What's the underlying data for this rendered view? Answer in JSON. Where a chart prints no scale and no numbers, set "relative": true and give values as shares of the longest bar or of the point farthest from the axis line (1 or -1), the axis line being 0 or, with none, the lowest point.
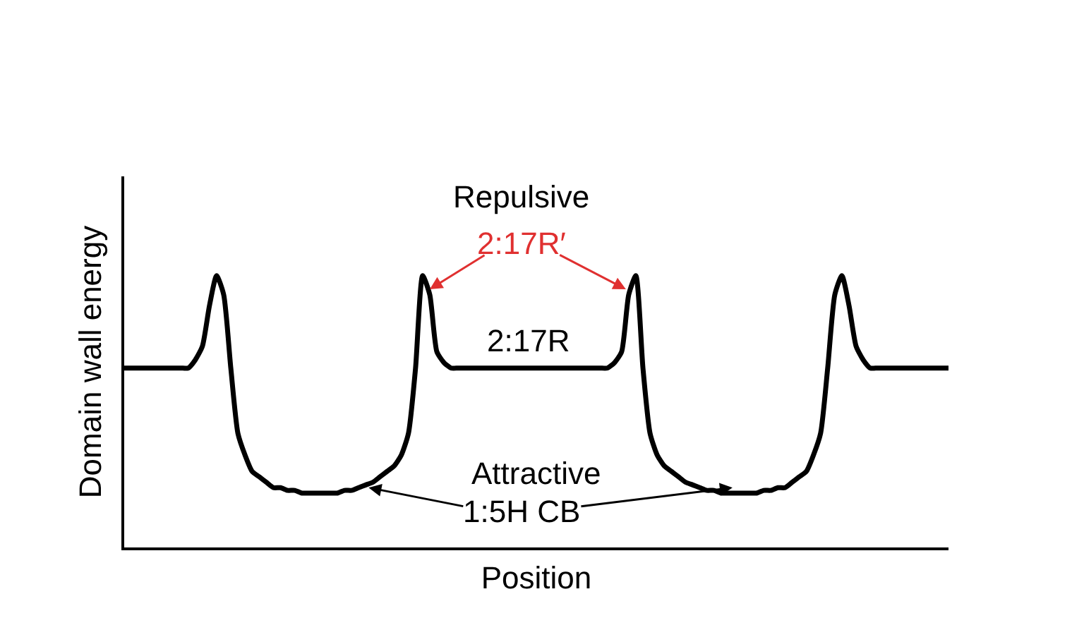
{
  "chart_data": {
    "type": "line",
    "relative": true,
    "xlabel": "Position",
    "ylabel": "Domain wall energy",
    "annotations": [
      "Repulsive",
      "2:17R′",
      "2:17R",
      "Attractive",
      "1:5H CB"
    ],
    "categories": [
      null,
      null,
      null,
      null,
      null,
      null,
      null,
      null,
      null,
      null,
      null,
      null,
      null,
      null,
      null,
      null,
      null,
      null,
      null,
      null,
      null,
      null,
      null,
      null,
      null,
      null,
      null,
      null,
      null,
      null,
      null,
      null,
      null,
      null,
      null,
      null,
      null,
      null,
      null,
      null,
      null,
      null,
      null,
      null,
      null,
      null,
      null,
      null,
      null,
      null,
      null,
      null,
      null,
      null,
      null,
      null,
      null,
      null,
      null,
      null,
      null,
      null,
      null,
      null,
      null,
      null,
      null,
      null,
      null,
      null,
      null,
      null,
      null,
      null,
      null,
      null,
      null,
      null,
      null,
      null,
      null,
      null,
      null,
      null,
      null,
      null,
      null,
      null,
      null,
      null,
      null,
      null,
      null,
      null,
      null,
      null,
      null,
      null,
      null,
      null,
      null,
      null,
      null,
      null,
      null,
      null,
      null,
      null,
      null,
      null,
      null,
      null,
      null,
      null,
      null,
      null,
      null
    ],
    "series": [
      {
        "color": "#000000",
        "values": [
          0.66,
          0.66,
          0.66,
          0.66,
          0.66,
          0.66,
          0.66,
          0.66,
          0.66,
          0.66,
          0.69,
          0.74,
          0.89,
          1,
          0.93,
          0.66,
          0.42,
          0.34,
          0.28,
          0.26,
          0.24,
          0.22,
          0.22,
          0.21,
          0.21,
          0.2,
          0.2,
          0.2,
          0.2,
          0.2,
          0.2,
          0.21,
          0.21,
          0.22,
          0.23,
          0.24,
          0.26,
          0.28,
          0.3,
          0.34,
          0.42,
          0.66,
          1,
          0.93,
          0.72,
          0.68,
          0.66,
          0.66,
          0.66,
          0.66,
          0.66,
          0.66,
          0.66,
          0.66,
          0.66,
          0.66,
          0.66,
          0.66,
          0.66,
          0.66,
          0.66,
          0.66,
          0.66,
          0.66,
          0.66,
          0.66,
          0.66,
          0.66,
          0.66,
          0.68,
          0.72,
          0.93,
          1,
          0.66,
          0.42,
          0.34,
          0.3,
          0.28,
          0.26,
          0.24,
          0.23,
          0.22,
          0.21,
          0.21,
          0.2,
          0.2,
          0.2,
          0.2,
          0.2,
          0.2,
          0.21,
          0.21,
          0.22,
          0.22,
          0.24,
          0.26,
          0.28,
          0.34,
          0.42,
          0.66,
          0.93,
          1,
          0.89,
          0.74,
          0.69,
          0.66,
          0.66,
          0.66,
          0.66,
          0.66,
          0.66,
          0.66,
          0.66,
          0.66,
          0.66,
          0.66,
          0.66
        ]
      }
    ],
    "marker": "none",
    "line_style": "solid",
    "grid": false
  }
}
